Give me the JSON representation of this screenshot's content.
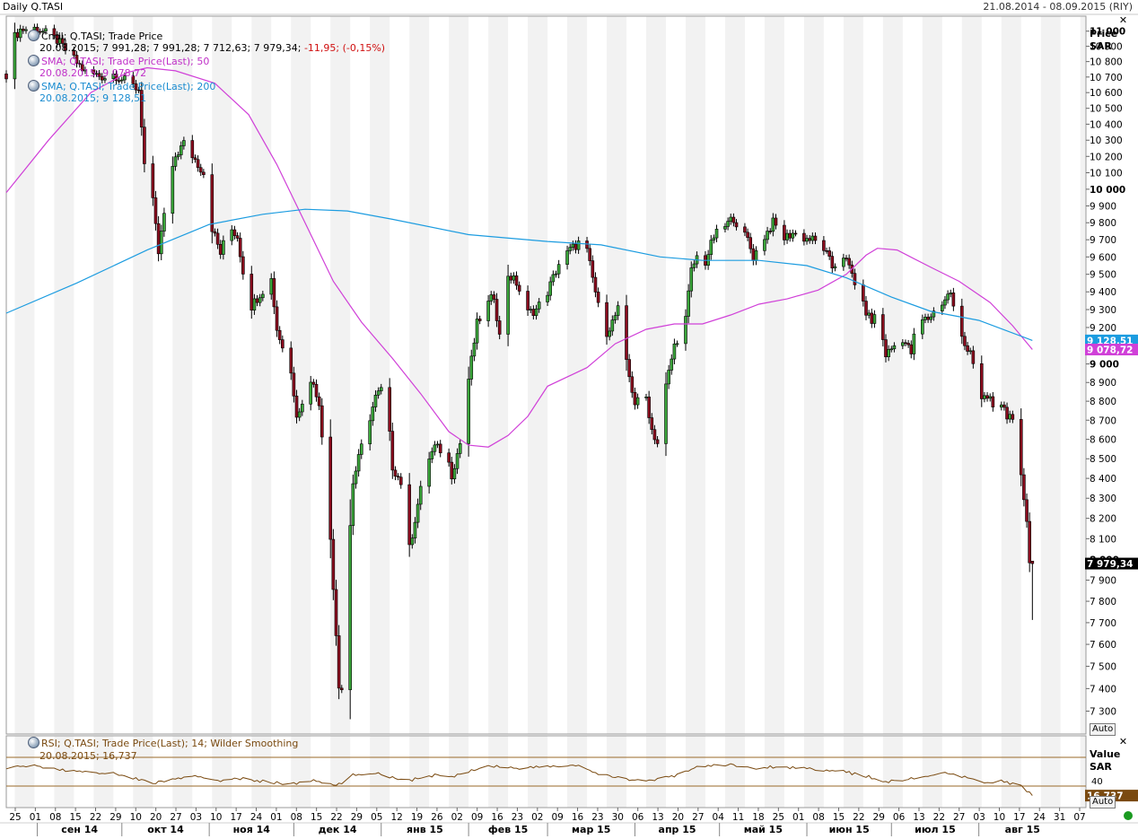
{
  "window": {
    "title": "Daily Q.TASI",
    "range": "21.08.2014 - 08.09.2015 (RIY)",
    "close_label": "✕"
  },
  "main_legend": {
    "candles_title": "Cndl; Q.TASI; Trade Price",
    "candles_values": "20.08.2015; 7 991,28; 7 991,28; 7 712,63; 7 979,34;",
    "candles_change": "-11,95; (-0,15%)",
    "sma50_title": "SMA; Q.TASI; Trade Price(Last);  50",
    "sma50_values": "20.08.2015; 9 078,72",
    "sma200_title": "SMA; Q.TASI; Trade Price(Last);  200",
    "sma200_values": "20.08.2015; 9 128,51"
  },
  "price_axis": {
    "title": "Price",
    "unit": "SAR",
    "auto_label": "Auto",
    "last_tag": "7 979,34",
    "sma200_tag": "9 128,51",
    "sma50_tag": "9 078,72",
    "ticks": [
      "11 000",
      "10 900",
      "10 800",
      "10 700",
      "10 600",
      "10 500",
      "10 400",
      "10 300",
      "10 200",
      "10 100",
      "10 000",
      "9 900",
      "9 800",
      "9 700",
      "9 600",
      "9 500",
      "9 400",
      "9 300",
      "9 200",
      "9 100",
      "9 000",
      "8 900",
      "8 800",
      "8 700",
      "8 600",
      "8 500",
      "8 400",
      "8 300",
      "8 200",
      "8 100",
      "8 000",
      "7 900",
      "7 800",
      "7 700",
      "7 600",
      "7 500",
      "7 400",
      "7 300"
    ]
  },
  "rsi_legend": {
    "title": "RSI; Q.TASI; Trade Price(Last);  14; Wilder Smoothing",
    "values": "20.08.2015; 16,737"
  },
  "rsi_axis": {
    "title": "Value",
    "unit": "SAR",
    "tick": "40",
    "last_tag": "16,737",
    "auto_label": "Auto"
  },
  "time_axis": {
    "days": [
      "25",
      "01",
      "08",
      "15",
      "22",
      "29",
      "10",
      "20",
      "27",
      "03",
      "10",
      "17",
      "24",
      "01",
      "08",
      "15",
      "22",
      "29",
      "05",
      "12",
      "19",
      "26",
      "02",
      "09",
      "16",
      "23",
      "02",
      "09",
      "16",
      "23",
      "30",
      "06",
      "13",
      "20",
      "27",
      "04",
      "11",
      "18",
      "25",
      "01",
      "08",
      "15",
      "22",
      "29",
      "06",
      "13",
      "22",
      "27",
      "03",
      "10",
      "17",
      "24",
      "31",
      "07"
    ],
    "months": [
      "сен 14",
      "окт 14",
      "ноя 14",
      "дек 14",
      "янв 15",
      "фев 15",
      "мар 15",
      "апр 15",
      "май 15",
      "июн 15",
      "июл 15",
      "авг 15"
    ]
  },
  "colors": {
    "up": "#3aa63a",
    "down": "#8a0c1e",
    "sma50": "#d040d8",
    "sma200": "#1c9ce0",
    "rsi": "#7a4a10",
    "band": "#f2f2f2",
    "last_tag_bg": "#000000",
    "sma200_tag_bg": "#1c9ce0",
    "sma50_tag_bg": "#d040d8",
    "rsi_tag_bg": "#7a4a10",
    "change_text": "#d01010",
    "status_dot": "#1a9a20"
  },
  "chart_data": {
    "type": "candlestick",
    "x_start": "2014-08-21",
    "x_end": "2015-09-08",
    "ylim": [
      7200,
      11100
    ],
    "anchors": [
      [
        "2014-08-21",
        10720
      ],
      [
        "2014-08-23",
        10940
      ],
      [
        "2014-08-26",
        11010
      ],
      [
        "2014-09-01",
        11020
      ],
      [
        "2014-09-08",
        10940
      ],
      [
        "2014-09-18",
        10730
      ],
      [
        "2014-09-25",
        10700
      ],
      [
        "2014-09-28",
        10720
      ],
      [
        "2014-10-07",
        10620
      ],
      [
        "2014-10-08",
        10400
      ],
      [
        "2014-10-09",
        10150
      ],
      [
        "2014-10-12",
        9920
      ],
      [
        "2014-10-14",
        9620
      ],
      [
        "2014-10-16",
        9850
      ],
      [
        "2014-10-20",
        10200
      ],
      [
        "2014-10-23",
        10280
      ],
      [
        "2014-10-27",
        10180
      ],
      [
        "2014-10-30",
        10100
      ],
      [
        "2014-11-02",
        9770
      ],
      [
        "2014-11-05",
        9620
      ],
      [
        "2014-11-08",
        9780
      ],
      [
        "2014-11-11",
        9720
      ],
      [
        "2014-11-13",
        9520
      ],
      [
        "2014-11-16",
        9320
      ],
      [
        "2014-11-19",
        9390
      ],
      [
        "2014-11-23",
        9470
      ],
      [
        "2014-11-25",
        9190
      ],
      [
        "2014-11-30",
        8950
      ],
      [
        "2014-12-02",
        8740
      ],
      [
        "2014-12-04",
        8780
      ],
      [
        "2014-12-07",
        8920
      ],
      [
        "2014-12-10",
        8800
      ],
      [
        "2014-12-12",
        8400
      ],
      [
        "2014-12-14",
        8100
      ],
      [
        "2014-12-16",
        7650
      ],
      [
        "2014-12-17",
        7420
      ],
      [
        "2014-12-18",
        7400
      ],
      [
        "2014-12-20",
        7950
      ],
      [
        "2014-12-22",
        8380
      ],
      [
        "2014-12-25",
        8560
      ],
      [
        "2014-12-30",
        8820
      ],
      [
        "2015-01-02",
        8880
      ],
      [
        "2015-01-04",
        8620
      ],
      [
        "2015-01-05",
        8460
      ],
      [
        "2015-01-08",
        8380
      ],
      [
        "2015-01-11",
        8050
      ],
      [
        "2015-01-14",
        8270
      ],
      [
        "2015-01-17",
        8480
      ],
      [
        "2015-01-20",
        8560
      ],
      [
        "2015-01-24",
        8530
      ],
      [
        "2015-01-26",
        8420
      ],
      [
        "2015-01-29",
        8580
      ],
      [
        "2015-02-01",
        8920
      ],
      [
        "2015-02-04",
        9220
      ],
      [
        "2015-02-07",
        9310
      ],
      [
        "2015-02-10",
        9380
      ],
      [
        "2015-02-12",
        9150
      ],
      [
        "2015-02-15",
        9500
      ],
      [
        "2015-02-18",
        9450
      ],
      [
        "2015-02-22",
        9280
      ],
      [
        "2015-02-25",
        9300
      ],
      [
        "2015-03-01",
        9400
      ],
      [
        "2015-03-05",
        9560
      ],
      [
        "2015-03-09",
        9640
      ],
      [
        "2015-03-12",
        9680
      ],
      [
        "2015-03-15",
        9630
      ],
      [
        "2015-03-18",
        9400
      ],
      [
        "2015-03-21",
        9150
      ],
      [
        "2015-03-24",
        9230
      ],
      [
        "2015-03-26",
        9300
      ],
      [
        "2015-03-29",
        9000
      ],
      [
        "2015-04-01",
        8790
      ],
      [
        "2015-04-05",
        8820
      ],
      [
        "2015-04-07",
        8650
      ],
      [
        "2015-04-09",
        8580
      ],
      [
        "2015-04-12",
        8880
      ],
      [
        "2015-04-15",
        9100
      ],
      [
        "2015-04-19",
        9250
      ],
      [
        "2015-04-21",
        9520
      ],
      [
        "2015-04-23",
        9600
      ],
      [
        "2015-04-26",
        9570
      ],
      [
        "2015-04-29",
        9720
      ],
      [
        "2015-05-03",
        9780
      ],
      [
        "2015-05-06",
        9830
      ],
      [
        "2015-05-09",
        9740
      ],
      [
        "2015-05-11",
        9700
      ],
      [
        "2015-05-13",
        9600
      ],
      [
        "2015-05-17",
        9720
      ],
      [
        "2015-05-20",
        9800
      ],
      [
        "2015-05-24",
        9710
      ],
      [
        "2015-05-27",
        9740
      ],
      [
        "2015-05-31",
        9710
      ],
      [
        "2015-06-03",
        9700
      ],
      [
        "2015-06-07",
        9650
      ],
      [
        "2015-06-10",
        9540
      ],
      [
        "2015-06-14",
        9610
      ],
      [
        "2015-06-17",
        9500
      ],
      [
        "2015-06-21",
        9320
      ],
      [
        "2015-06-24",
        9230
      ],
      [
        "2015-06-26",
        9300
      ],
      [
        "2015-06-29",
        9050
      ],
      [
        "2015-07-02",
        9100
      ],
      [
        "2015-07-05",
        9140
      ],
      [
        "2015-07-08",
        9060
      ],
      [
        "2015-07-10",
        9230
      ],
      [
        "2015-07-14",
        9250
      ],
      [
        "2015-07-19",
        9340
      ],
      [
        "2015-07-22",
        9400
      ],
      [
        "2015-07-24",
        9220
      ],
      [
        "2015-07-27",
        9100
      ],
      [
        "2015-07-29",
        9080
      ],
      [
        "2015-08-02",
        8800
      ],
      [
        "2015-08-05",
        8820
      ],
      [
        "2015-08-07",
        8690
      ],
      [
        "2015-08-09",
        8790
      ],
      [
        "2015-08-11",
        8730
      ],
      [
        "2015-08-13",
        8680
      ],
      [
        "2015-08-16",
        8400
      ],
      [
        "2015-08-18",
        8200
      ],
      [
        "2015-08-19",
        7991.28
      ],
      [
        "2015-08-20",
        7979.34
      ]
    ],
    "sma50": [
      [
        "2014-08-21",
        9980
      ],
      [
        "2014-09-05",
        10300
      ],
      [
        "2014-09-20",
        10600
      ],
      [
        "2014-10-03",
        10730
      ],
      [
        "2014-10-10",
        10760
      ],
      [
        "2014-10-20",
        10740
      ],
      [
        "2014-11-03",
        10660
      ],
      [
        "2014-11-15",
        10460
      ],
      [
        "2014-11-25",
        10150
      ],
      [
        "2014-12-05",
        9800
      ],
      [
        "2014-12-15",
        9460
      ],
      [
        "2014-12-25",
        9230
      ],
      [
        "2015-01-05",
        9030
      ],
      [
        "2015-01-15",
        8840
      ],
      [
        "2015-01-25",
        8640
      ],
      [
        "2015-02-01",
        8570
      ],
      [
        "2015-02-08",
        8560
      ],
      [
        "2015-02-15",
        8620
      ],
      [
        "2015-02-22",
        8720
      ],
      [
        "2015-03-01",
        8880
      ],
      [
        "2015-03-15",
        8980
      ],
      [
        "2015-03-25",
        9110
      ],
      [
        "2015-04-05",
        9190
      ],
      [
        "2015-04-15",
        9220
      ],
      [
        "2015-04-25",
        9220
      ],
      [
        "2015-05-05",
        9270
      ],
      [
        "2015-05-15",
        9330
      ],
      [
        "2015-05-25",
        9360
      ],
      [
        "2015-06-05",
        9410
      ],
      [
        "2015-06-15",
        9500
      ],
      [
        "2015-06-22",
        9610
      ],
      [
        "2015-06-26",
        9650
      ],
      [
        "2015-07-03",
        9640
      ],
      [
        "2015-07-15",
        9540
      ],
      [
        "2015-07-25",
        9460
      ],
      [
        "2015-08-05",
        9340
      ],
      [
        "2015-08-13",
        9210
      ],
      [
        "2015-08-20",
        9078.72
      ]
    ],
    "sma200": [
      [
        "2014-08-21",
        9280
      ],
      [
        "2014-09-15",
        9450
      ],
      [
        "2014-10-10",
        9640
      ],
      [
        "2014-11-01",
        9790
      ],
      [
        "2014-11-20",
        9850
      ],
      [
        "2014-12-05",
        9880
      ],
      [
        "2014-12-20",
        9870
      ],
      [
        "2015-01-05",
        9820
      ],
      [
        "2015-02-01",
        9730
      ],
      [
        "2015-03-01",
        9690
      ],
      [
        "2015-03-20",
        9670
      ],
      [
        "2015-04-10",
        9600
      ],
      [
        "2015-04-25",
        9580
      ],
      [
        "2015-05-15",
        9580
      ],
      [
        "2015-06-01",
        9550
      ],
      [
        "2015-06-15",
        9480
      ],
      [
        "2015-07-01",
        9370
      ],
      [
        "2015-07-15",
        9290
      ],
      [
        "2015-08-01",
        9240
      ],
      [
        "2015-08-20",
        9128.51
      ]
    ],
    "rsi": [
      [
        "2014-08-21",
        56
      ],
      [
        "2014-09-01",
        58
      ],
      [
        "2014-09-10",
        52
      ],
      [
        "2014-09-20",
        50
      ],
      [
        "2014-10-01",
        46
      ],
      [
        "2014-10-08",
        38
      ],
      [
        "2014-10-12",
        34
      ],
      [
        "2014-10-20",
        40
      ],
      [
        "2014-10-27",
        43
      ],
      [
        "2014-11-05",
        38
      ],
      [
        "2014-11-13",
        40
      ],
      [
        "2014-11-23",
        35
      ],
      [
        "2014-12-01",
        33
      ],
      [
        "2014-12-08",
        38
      ],
      [
        "2014-12-16",
        30
      ],
      [
        "2014-12-22",
        45
      ],
      [
        "2014-12-30",
        49
      ],
      [
        "2015-01-05",
        42
      ],
      [
        "2015-01-11",
        38
      ],
      [
        "2015-01-20",
        45
      ],
      [
        "2015-01-26",
        42
      ],
      [
        "2015-02-04",
        55
      ],
      [
        "2015-02-10",
        58
      ],
      [
        "2015-02-18",
        55
      ],
      [
        "2015-03-01",
        57
      ],
      [
        "2015-03-12",
        59
      ],
      [
        "2015-03-18",
        47
      ],
      [
        "2015-03-29",
        40
      ],
      [
        "2015-04-07",
        37
      ],
      [
        "2015-04-15",
        44
      ],
      [
        "2015-04-23",
        57
      ],
      [
        "2015-05-06",
        60
      ],
      [
        "2015-05-13",
        54
      ],
      [
        "2015-05-20",
        57
      ],
      [
        "2015-06-01",
        55
      ],
      [
        "2015-06-14",
        50
      ],
      [
        "2015-06-24",
        42
      ],
      [
        "2015-06-29",
        36
      ],
      [
        "2015-07-08",
        40
      ],
      [
        "2015-07-19",
        48
      ],
      [
        "2015-07-27",
        42
      ],
      [
        "2015-08-02",
        35
      ],
      [
        "2015-08-09",
        37
      ],
      [
        "2015-08-16",
        30
      ],
      [
        "2015-08-20",
        16.737
      ]
    ],
    "rsi_ylim": [
      0,
      100
    ],
    "rsi_levels": [
      30,
      70
    ]
  }
}
